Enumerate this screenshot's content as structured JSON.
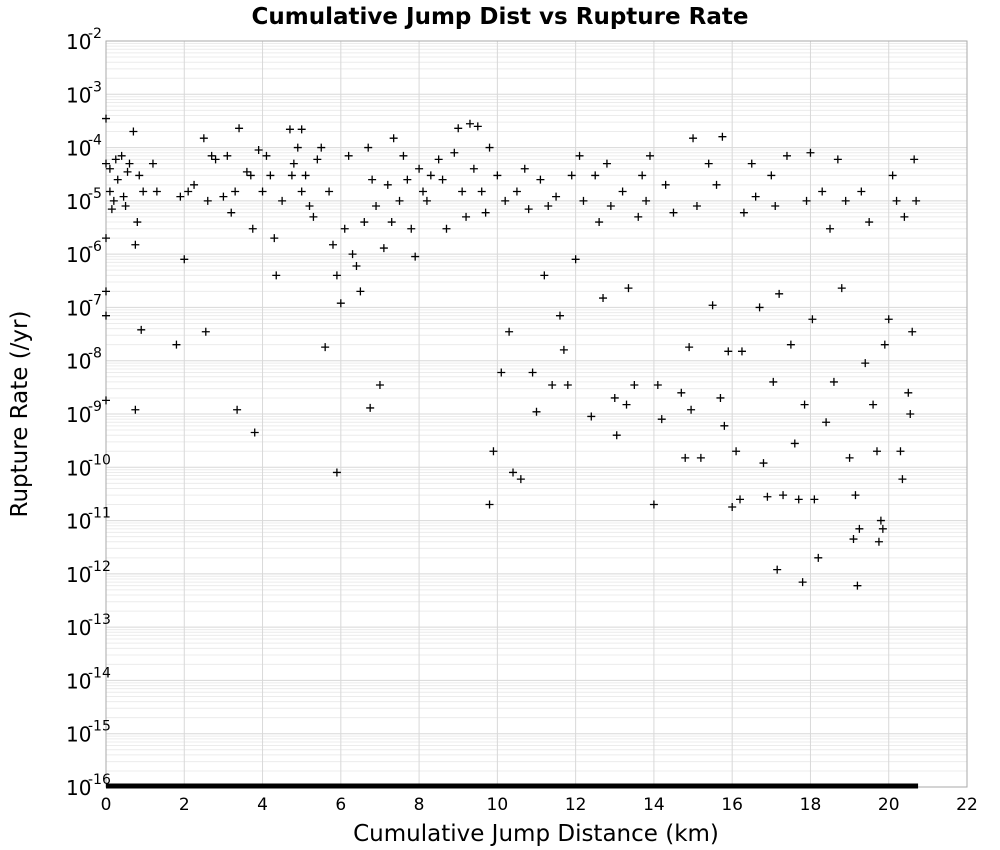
{
  "chart_data": {
    "type": "scatter",
    "title": "Cumulative Jump Dist vs Rupture Rate",
    "xlabel": "Cumulative Jump Distance (km)",
    "ylabel": "Rupture Rate (/yr)",
    "xlim": [
      0,
      22
    ],
    "ylim_exponents": [
      -16,
      -2
    ],
    "y_scale": "log",
    "x_ticks": [
      "0",
      "2",
      "4",
      "6",
      "8",
      "10",
      "12",
      "14",
      "16",
      "18",
      "20",
      "22"
    ],
    "y_ticks": [
      {
        "base": "10",
        "exp": "-2"
      },
      {
        "base": "10",
        "exp": "-3"
      },
      {
        "base": "10",
        "exp": "-4"
      },
      {
        "base": "10",
        "exp": "-5"
      },
      {
        "base": "10",
        "exp": "-6"
      },
      {
        "base": "10",
        "exp": "-7"
      },
      {
        "base": "10",
        "exp": "-8"
      },
      {
        "base": "10",
        "exp": "-9"
      },
      {
        "base": "10",
        "exp": "-10"
      },
      {
        "base": "10",
        "exp": "-11"
      },
      {
        "base": "10",
        "exp": "-12"
      },
      {
        "base": "10",
        "exp": "-13"
      },
      {
        "base": "10",
        "exp": "-14"
      },
      {
        "base": "10",
        "exp": "-15"
      },
      {
        "base": "10",
        "exp": "-16"
      }
    ],
    "grid": true,
    "marker": "plus",
    "marker_color": "#000000",
    "floor_band": {
      "x_range": [
        0,
        20.75
      ],
      "y": 1e-16
    },
    "points": [
      [
        0.0,
        0.00035
      ],
      [
        0.0,
        5e-05
      ],
      [
        0.0,
        2e-06
      ],
      [
        0.0,
        2e-07
      ],
      [
        0.0,
        7e-08
      ],
      [
        0.0,
        1.8e-09
      ],
      [
        0.1,
        4e-05
      ],
      [
        0.1,
        1.5e-05
      ],
      [
        0.15,
        7e-06
      ],
      [
        0.2,
        1e-05
      ],
      [
        0.25,
        6e-05
      ],
      [
        0.3,
        2.5e-05
      ],
      [
        0.4,
        7e-05
      ],
      [
        0.45,
        1.2e-05
      ],
      [
        0.5,
        8e-06
      ],
      [
        0.55,
        3.5e-05
      ],
      [
        0.6,
        5e-05
      ],
      [
        0.7,
        0.0002
      ],
      [
        0.75,
        1.5e-06
      ],
      [
        0.75,
        1.2e-09
      ],
      [
        0.8,
        4e-06
      ],
      [
        0.85,
        3e-05
      ],
      [
        0.9,
        3.8e-08
      ],
      [
        0.95,
        1.5e-05
      ],
      [
        1.2,
        5e-05
      ],
      [
        1.3,
        1.5e-05
      ],
      [
        1.8,
        2e-08
      ],
      [
        1.9,
        1.2e-05
      ],
      [
        2.0,
        8e-07
      ],
      [
        2.1,
        1.5e-05
      ],
      [
        2.25,
        2e-05
      ],
      [
        2.5,
        0.00015
      ],
      [
        2.55,
        3.5e-08
      ],
      [
        2.6,
        1e-05
      ],
      [
        2.7,
        7e-05
      ],
      [
        2.8,
        6e-05
      ],
      [
        3.0,
        1.2e-05
      ],
      [
        3.1,
        7e-05
      ],
      [
        3.2,
        6e-06
      ],
      [
        3.3,
        1.5e-05
      ],
      [
        3.35,
        1.2e-09
      ],
      [
        3.4,
        0.00023
      ],
      [
        3.6,
        3.5e-05
      ],
      [
        3.7,
        3e-05
      ],
      [
        3.75,
        3e-06
      ],
      [
        3.8,
        4.5e-10
      ],
      [
        3.9,
        9e-05
      ],
      [
        4.0,
        1.5e-05
      ],
      [
        4.1,
        7e-05
      ],
      [
        4.2,
        3e-05
      ],
      [
        4.3,
        2e-06
      ],
      [
        4.35,
        4e-07
      ],
      [
        4.5,
        1e-05
      ],
      [
        4.7,
        0.00022
      ],
      [
        4.75,
        3e-05
      ],
      [
        4.8,
        5e-05
      ],
      [
        4.9,
        0.0001
      ],
      [
        5.0,
        0.00022
      ],
      [
        5.0,
        1.5e-05
      ],
      [
        5.1,
        3e-05
      ],
      [
        5.2,
        8e-06
      ],
      [
        5.3,
        5e-06
      ],
      [
        5.4,
        6e-05
      ],
      [
        5.5,
        0.0001
      ],
      [
        5.6,
        1.8e-08
      ],
      [
        5.7,
        1.5e-05
      ],
      [
        5.8,
        1.5e-06
      ],
      [
        5.9,
        4e-07
      ],
      [
        5.9,
        8e-11
      ],
      [
        6.0,
        1.2e-07
      ],
      [
        6.1,
        3e-06
      ],
      [
        6.2,
        7e-05
      ],
      [
        6.3,
        1e-06
      ],
      [
        6.4,
        6e-07
      ],
      [
        6.5,
        2e-07
      ],
      [
        6.6,
        4e-06
      ],
      [
        6.7,
        0.0001
      ],
      [
        6.75,
        1.3e-09
      ],
      [
        6.8,
        2.5e-05
      ],
      [
        6.9,
        8e-06
      ],
      [
        7.0,
        3.5e-09
      ],
      [
        7.1,
        1.3e-06
      ],
      [
        7.2,
        2e-05
      ],
      [
        7.3,
        4e-06
      ],
      [
        7.35,
        0.00015
      ],
      [
        7.5,
        1e-05
      ],
      [
        7.6,
        7e-05
      ],
      [
        7.7,
        2.5e-05
      ],
      [
        7.8,
        3e-06
      ],
      [
        7.9,
        9e-07
      ],
      [
        8.0,
        4e-05
      ],
      [
        8.1,
        1.5e-05
      ],
      [
        8.2,
        1e-05
      ],
      [
        8.3,
        3e-05
      ],
      [
        8.5,
        6e-05
      ],
      [
        8.6,
        2.5e-05
      ],
      [
        8.7,
        3e-06
      ],
      [
        8.9,
        8e-05
      ],
      [
        9.0,
        0.00023
      ],
      [
        9.1,
        1.5e-05
      ],
      [
        9.2,
        5e-06
      ],
      [
        9.3,
        0.00028
      ],
      [
        9.4,
        4e-05
      ],
      [
        9.5,
        0.00025
      ],
      [
        9.6,
        1.5e-05
      ],
      [
        9.7,
        6e-06
      ],
      [
        9.8,
        0.0001
      ],
      [
        9.8,
        2e-11
      ],
      [
        9.9,
        2e-10
      ],
      [
        10.0,
        3e-05
      ],
      [
        10.1,
        6e-09
      ],
      [
        10.2,
        1e-05
      ],
      [
        10.3,
        3.5e-08
      ],
      [
        10.4,
        8e-11
      ],
      [
        10.5,
        1.5e-05
      ],
      [
        10.6,
        6e-11
      ],
      [
        10.7,
        4e-05
      ],
      [
        10.8,
        7e-06
      ],
      [
        10.9,
        6e-09
      ],
      [
        11.0,
        1.1e-09
      ],
      [
        11.1,
        2.5e-05
      ],
      [
        11.2,
        4e-07
      ],
      [
        11.3,
        8e-06
      ],
      [
        11.4,
        3.5e-09
      ],
      [
        11.5,
        1.2e-05
      ],
      [
        11.6,
        7e-08
      ],
      [
        11.7,
        1.6e-08
      ],
      [
        11.8,
        3.5e-09
      ],
      [
        11.9,
        3e-05
      ],
      [
        12.0,
        8e-07
      ],
      [
        12.1,
        7e-05
      ],
      [
        12.2,
        1e-05
      ],
      [
        12.4,
        9e-10
      ],
      [
        12.5,
        3e-05
      ],
      [
        12.6,
        4e-06
      ],
      [
        12.7,
        1.5e-07
      ],
      [
        12.8,
        5e-05
      ],
      [
        12.9,
        8e-06
      ],
      [
        13.0,
        2e-09
      ],
      [
        13.05,
        4e-10
      ],
      [
        13.2,
        1.5e-05
      ],
      [
        13.3,
        1.5e-09
      ],
      [
        13.35,
        2.3e-07
      ],
      [
        13.5,
        3.5e-09
      ],
      [
        13.6,
        5e-06
      ],
      [
        13.7,
        3e-05
      ],
      [
        13.8,
        1e-05
      ],
      [
        13.9,
        7e-05
      ],
      [
        14.0,
        2e-11
      ],
      [
        14.1,
        3.5e-09
      ],
      [
        14.2,
        8e-10
      ],
      [
        14.3,
        2e-05
      ],
      [
        14.5,
        6e-06
      ],
      [
        14.7,
        2.5e-09
      ],
      [
        14.8,
        1.5e-10
      ],
      [
        14.9,
        1.8e-08
      ],
      [
        14.95,
        1.2e-09
      ],
      [
        15.0,
        0.00015
      ],
      [
        15.1,
        8e-06
      ],
      [
        15.2,
        1.5e-10
      ],
      [
        15.4,
        5e-05
      ],
      [
        15.5,
        1.1e-07
      ],
      [
        15.6,
        2e-05
      ],
      [
        15.7,
        2e-09
      ],
      [
        15.75,
        0.00016
      ],
      [
        15.8,
        6e-10
      ],
      [
        15.9,
        1.5e-08
      ],
      [
        16.0,
        1.8e-11
      ],
      [
        16.1,
        2e-10
      ],
      [
        16.2,
        2.5e-11
      ],
      [
        16.25,
        1.5e-08
      ],
      [
        16.3,
        6e-06
      ],
      [
        16.5,
        5e-05
      ],
      [
        16.6,
        1.2e-05
      ],
      [
        16.7,
        1e-07
      ],
      [
        16.8,
        1.2e-10
      ],
      [
        16.9,
        2.8e-11
      ],
      [
        17.0,
        3e-05
      ],
      [
        17.05,
        4e-09
      ],
      [
        17.1,
        8e-06
      ],
      [
        17.15,
        1.2e-12
      ],
      [
        17.2,
        1.8e-07
      ],
      [
        17.3,
        3e-11
      ],
      [
        17.4,
        7e-05
      ],
      [
        17.5,
        2e-08
      ],
      [
        17.6,
        2.8e-10
      ],
      [
        17.7,
        2.5e-11
      ],
      [
        17.8,
        7e-13
      ],
      [
        17.85,
        1.5e-09
      ],
      [
        17.9,
        1e-05
      ],
      [
        18.0,
        8e-05
      ],
      [
        18.05,
        6e-08
      ],
      [
        18.1,
        2.5e-11
      ],
      [
        18.2,
        2e-12
      ],
      [
        18.3,
        1.5e-05
      ],
      [
        18.4,
        7e-10
      ],
      [
        18.5,
        3e-06
      ],
      [
        18.6,
        4e-09
      ],
      [
        18.7,
        6e-05
      ],
      [
        18.8,
        2.3e-07
      ],
      [
        18.9,
        1e-05
      ],
      [
        19.0,
        1.5e-10
      ],
      [
        19.1,
        4.5e-12
      ],
      [
        19.15,
        3e-11
      ],
      [
        19.2,
        6e-13
      ],
      [
        19.25,
        7e-12
      ],
      [
        19.3,
        1.5e-05
      ],
      [
        19.4,
        9e-09
      ],
      [
        19.5,
        4e-06
      ],
      [
        19.6,
        1.5e-09
      ],
      [
        19.7,
        2e-10
      ],
      [
        19.75,
        4e-12
      ],
      [
        19.8,
        1e-11
      ],
      [
        19.85,
        7e-12
      ],
      [
        19.9,
        2e-08
      ],
      [
        20.0,
        6e-08
      ],
      [
        20.1,
        3e-05
      ],
      [
        20.2,
        1e-05
      ],
      [
        20.3,
        2e-10
      ],
      [
        20.35,
        6e-11
      ],
      [
        20.4,
        5e-06
      ],
      [
        20.5,
        2.5e-09
      ],
      [
        20.55,
        1e-09
      ],
      [
        20.6,
        3.5e-08
      ],
      [
        20.65,
        6e-05
      ],
      [
        20.7,
        1e-05
      ]
    ]
  }
}
